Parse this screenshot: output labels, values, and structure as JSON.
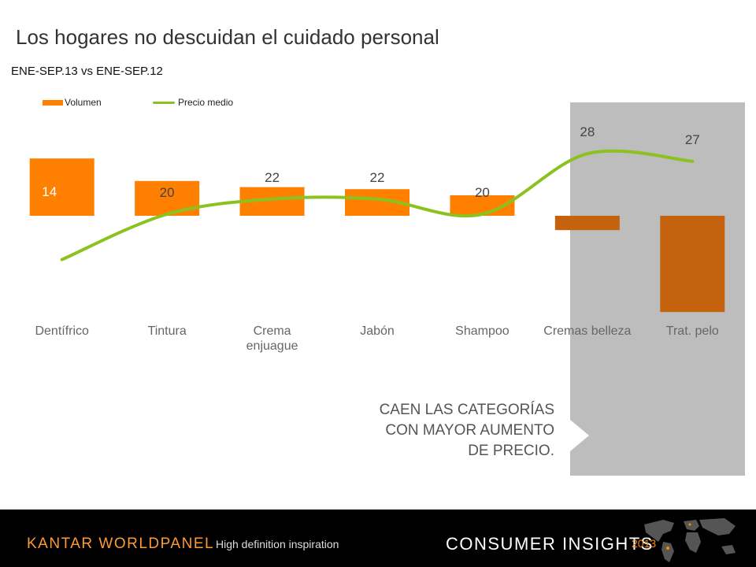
{
  "title": "Los hogares no descuidan el cuidado personal",
  "subtitle": "ENE-SEP.13 vs ENE-SEP.12",
  "colors": {
    "bar": "#ff7f00",
    "bar_highlight": "#c5620e",
    "line": "#8cc21f",
    "panel": "#bdbdbd",
    "footer": "#000000",
    "brand": "#ff9933"
  },
  "callout": {
    "line1": "CAEN LAS CATEGORÍAS",
    "line2": "CON MAYOR AUMENTO",
    "line3": "DE PRECIO."
  },
  "chart_data": {
    "type": "bar",
    "categories": [
      "Dentífrico",
      "Tintura",
      "Crema enjuague",
      "Jabón",
      "Shampoo",
      "Cremas belleza",
      "Trat. pelo"
    ],
    "highlighted_categories": [
      "Cremas belleza",
      "Trat. pelo"
    ],
    "legend_position": "top-left",
    "grid": false,
    "y_axis_shown": false,
    "series": [
      {
        "name": "Volumen",
        "type": "bar",
        "values": [
          14,
          8.5,
          7,
          6.5,
          5,
          -3.5,
          -23.5
        ]
      },
      {
        "name": "Precio medio",
        "type": "line",
        "values": [
          14,
          20,
          22,
          22,
          20,
          28,
          27
        ]
      }
    ],
    "data_labels": [
      "14",
      "20",
      "22",
      "22",
      "20",
      "28",
      "27"
    ]
  },
  "footer": {
    "brand": "KANTAR WORLDPANEL",
    "tagline": "High definition inspiration",
    "section": "CONSUMER INSIGHTS",
    "year": "2013"
  }
}
